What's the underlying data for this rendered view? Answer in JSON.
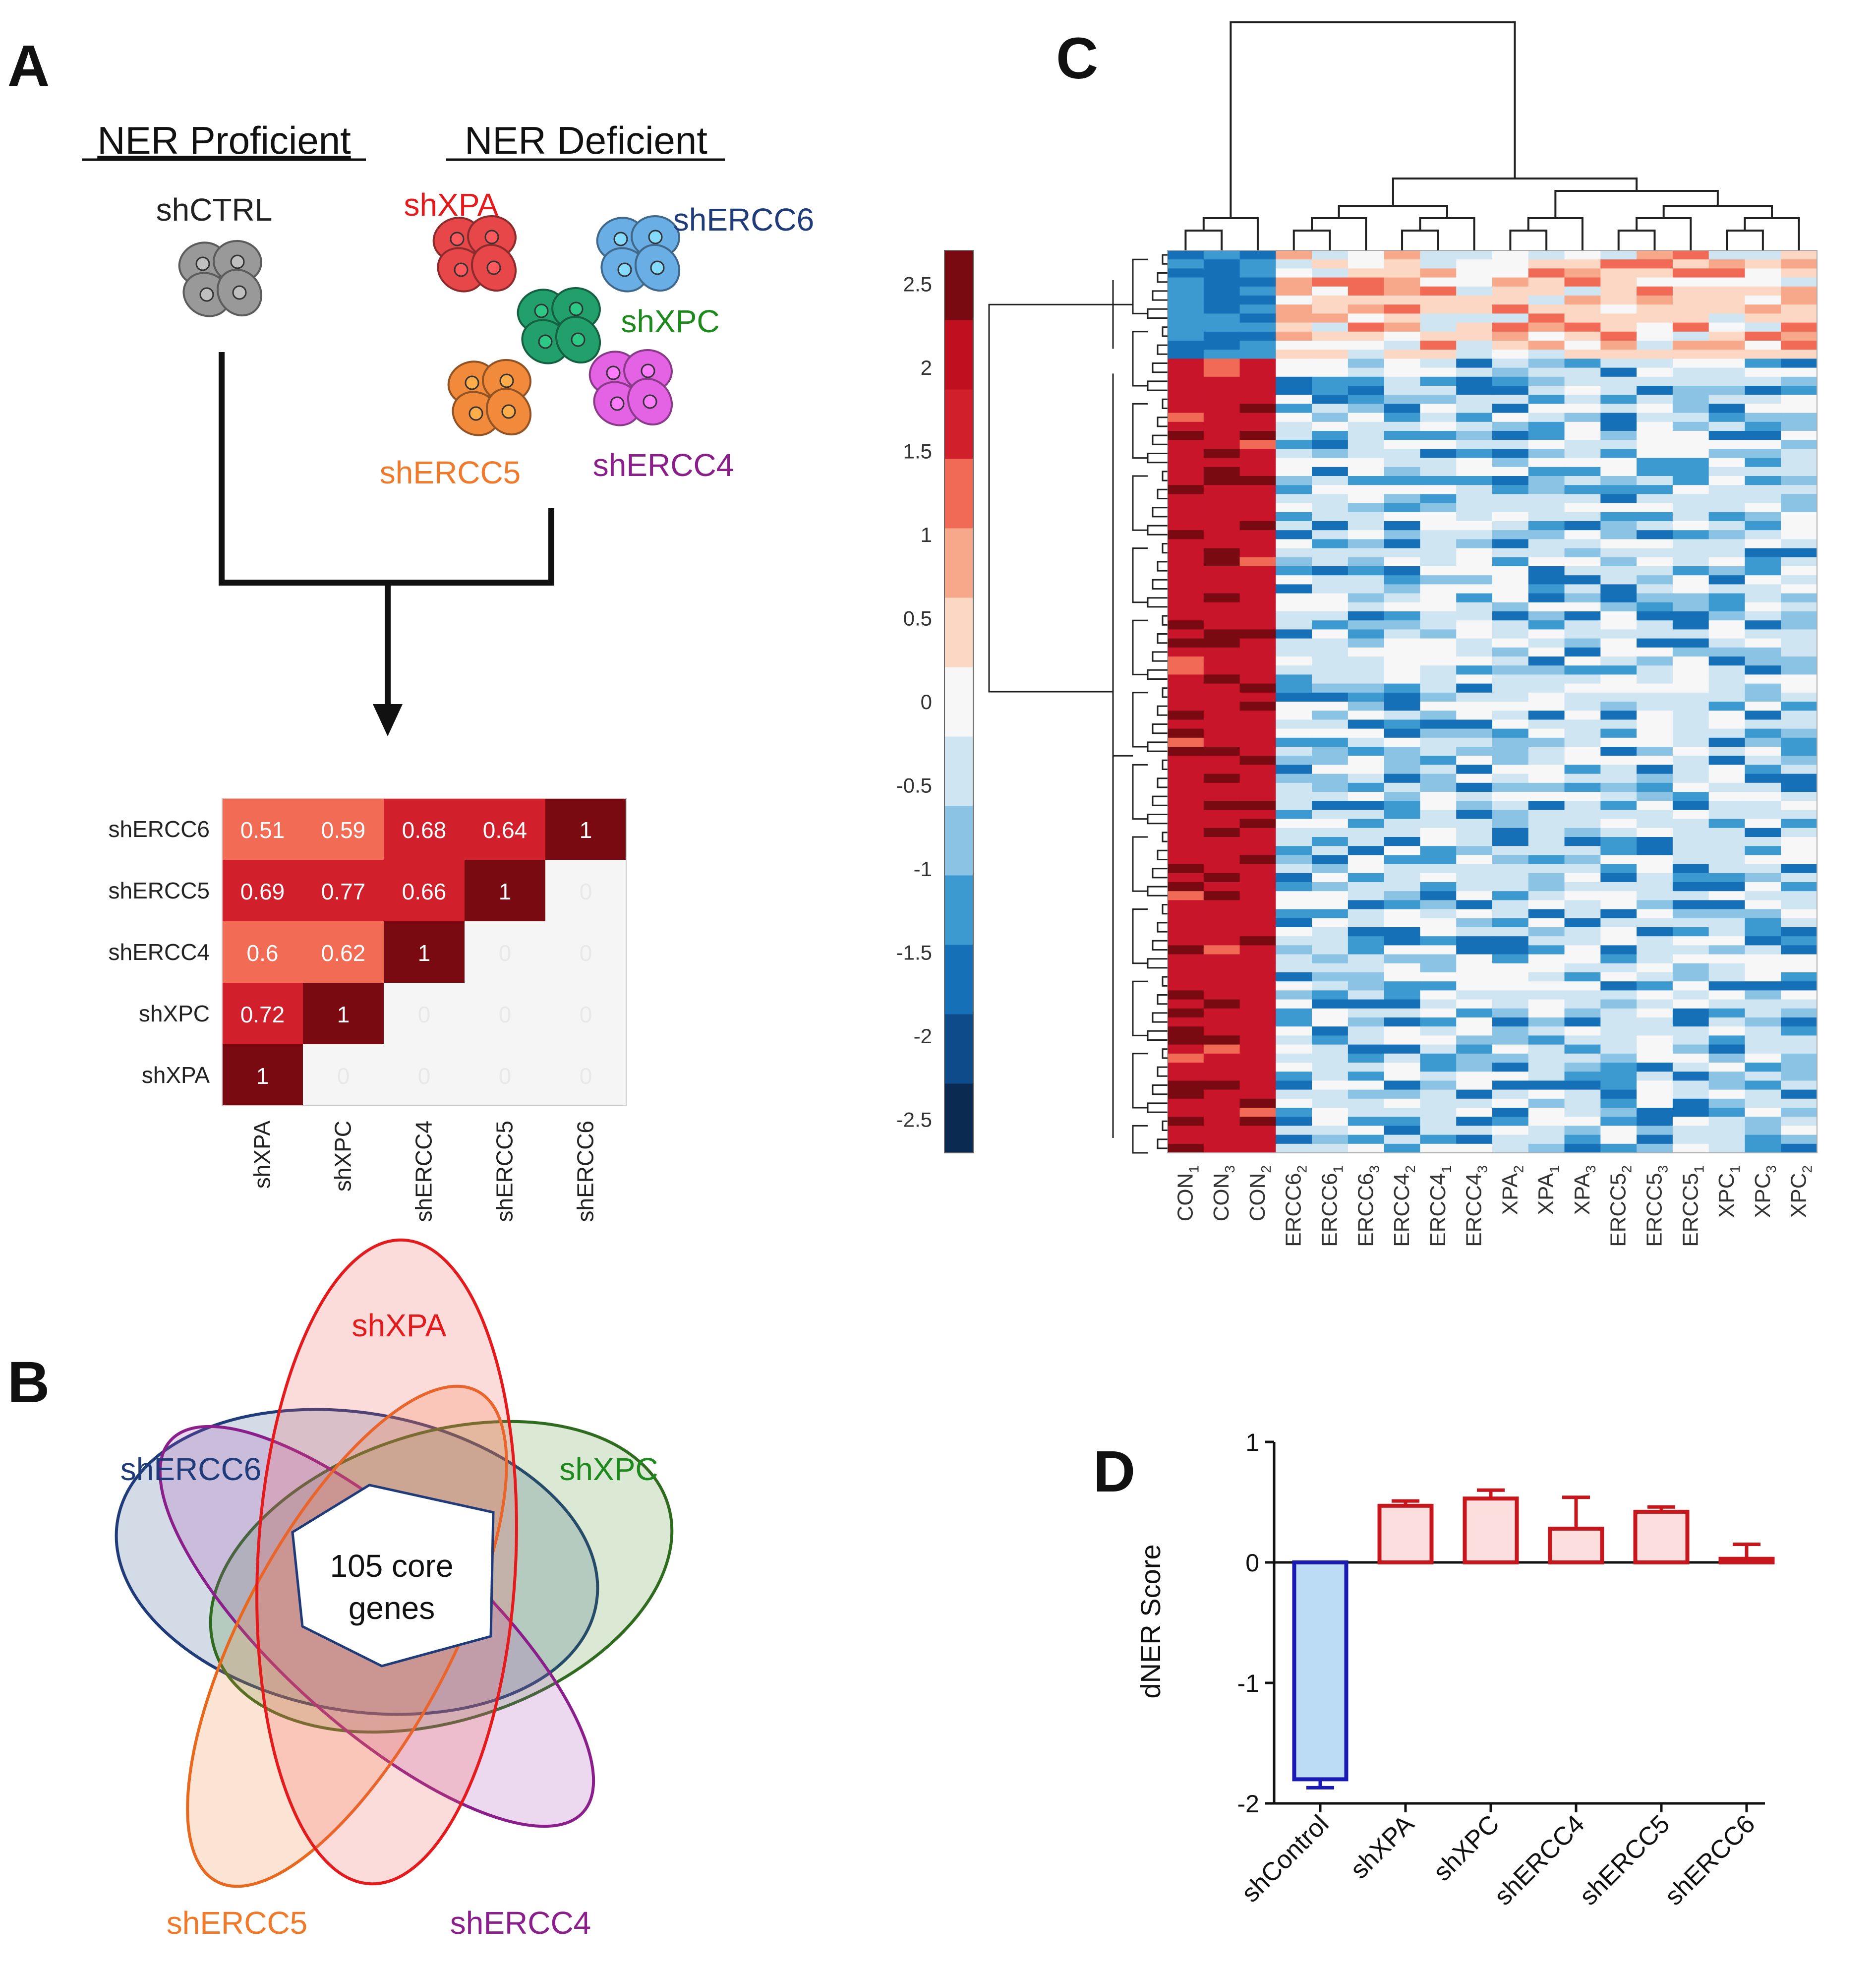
{
  "panels": {
    "A": {
      "letter": "A",
      "proficient_label": "NER Proficient",
      "deficient_label": "NER Deficient",
      "cells": [
        {
          "label": "shCTRL",
          "color": "#999999",
          "text_color": "#222222"
        },
        {
          "label": "shXPA",
          "color": "#e8474a",
          "text_color": "#e41a1c"
        },
        {
          "label": "shERCC6",
          "color": "#6aaee6",
          "text_color": "#1f3b7a"
        },
        {
          "label": "shXPC",
          "color": "#22a06b",
          "text_color": "#1e8a1e"
        },
        {
          "label": "shERCC5",
          "color": "#f28a3c",
          "text_color": "#f07a2a"
        },
        {
          "label": "shERCC4",
          "color": "#e463e4",
          "text_color": "#8a1e8a"
        }
      ],
      "correlation_matrix": {
        "row_labels": [
          "shERCC6",
          "shERCC5",
          "shERCC4",
          "shXPC",
          "shXPA"
        ],
        "col_labels": [
          "shXPA",
          "shXPC",
          "shERCC4",
          "shERCC5",
          "shERCC6"
        ],
        "values": [
          [
            "0.51",
            "0.59",
            "0.68",
            "0.64",
            "1"
          ],
          [
            "0.69",
            "0.77",
            "0.66",
            "1",
            "0"
          ],
          [
            "0.6",
            "0.62",
            "1",
            "0",
            "0"
          ],
          [
            "0.72",
            "1",
            "0",
            "0",
            "0"
          ],
          [
            "1",
            "0",
            "0",
            "0",
            "0"
          ]
        ],
        "cell_colors": [
          [
            "#f26b55",
            "#f26b55",
            "#d21f2c",
            "#d21f2c",
            "#7a0a12"
          ],
          [
            "#d21f2c",
            "#d21f2c",
            "#d21f2c",
            "#7a0a12",
            "#f5f5f5"
          ],
          [
            "#f26b55",
            "#f26b55",
            "#7a0a12",
            "#f5f5f5",
            "#f5f5f5"
          ],
          [
            "#d21f2c",
            "#7a0a12",
            "#f5f5f5",
            "#f5f5f5",
            "#f5f5f5"
          ],
          [
            "#7a0a12",
            "#f5f5f5",
            "#f5f5f5",
            "#f5f5f5",
            "#f5f5f5"
          ]
        ]
      }
    },
    "B": {
      "letter": "B",
      "sets": [
        {
          "label": "shXPA",
          "color": "#e41a1c"
        },
        {
          "label": "shXPC",
          "color": "#1e8a1e"
        },
        {
          "label": "shERCC4",
          "color": "#8a1e8a"
        },
        {
          "label": "shERCC5",
          "color": "#f07a2a"
        },
        {
          "label": "shERCC6",
          "color": "#1f3b7a"
        }
      ],
      "core_line1": "105 core",
      "core_line2": "genes"
    },
    "C": {
      "letter": "C",
      "colorbar_ticks": [
        "2.5",
        "2",
        "1.5",
        "1",
        "0.5",
        "0",
        "-0.5",
        "-1",
        "-1.5",
        "-2",
        "-2.5"
      ],
      "colorbar_colors": [
        "#0b2a52",
        "#0d4b8a",
        "#1670b8",
        "#3d9ad0",
        "#8ac3e3",
        "#cfe5f2",
        "#f7f7f7",
        "#fbd7c4",
        "#f8a88a",
        "#f06a55",
        "#d21f2c",
        "#c0101f",
        "#7a0a12"
      ],
      "column_labels": [
        {
          "name": "CON",
          "sub": "1"
        },
        {
          "name": "CON",
          "sub": "3"
        },
        {
          "name": "CON",
          "sub": "2"
        },
        {
          "name": "ERCC6",
          "sub": "2"
        },
        {
          "name": "ERCC6",
          "sub": "1"
        },
        {
          "name": "ERCC6",
          "sub": "3"
        },
        {
          "name": "ERCC4",
          "sub": "2"
        },
        {
          "name": "ERCC4",
          "sub": "1"
        },
        {
          "name": "ERCC4",
          "sub": "3"
        },
        {
          "name": "XPA",
          "sub": "2"
        },
        {
          "name": "XPA",
          "sub": "1"
        },
        {
          "name": "XPA",
          "sub": "3"
        },
        {
          "name": "ERCC5",
          "sub": "2"
        },
        {
          "name": "ERCC5",
          "sub": "3"
        },
        {
          "name": "ERCC5",
          "sub": "1"
        },
        {
          "name": "XPC",
          "sub": "1"
        },
        {
          "name": "XPC",
          "sub": "3"
        },
        {
          "name": "XPC",
          "sub": "2"
        }
      ]
    },
    "D": {
      "letter": "D"
    }
  },
  "chart_data": {
    "type": "bar",
    "title": "",
    "xlabel": "",
    "ylabel": "dNER Score",
    "ylim": [
      -2,
      1
    ],
    "yticks": [
      "1",
      "0",
      "-1",
      "-2"
    ],
    "categories": [
      "shControl",
      "shXPA",
      "shXPC",
      "shERCC4",
      "shERCC5",
      "shERCC6"
    ],
    "values": [
      -1.8,
      0.47,
      0.53,
      0.28,
      0.42,
      0.03
    ],
    "errors": [
      0.07,
      0.04,
      0.07,
      0.26,
      0.04,
      0.12
    ],
    "colors": {
      "control_stroke": "#1a1ab4",
      "control_fill": "#bcdcf5",
      "knockdown_stroke": "#c8161d",
      "knockdown_fill": "#fcdede"
    }
  }
}
